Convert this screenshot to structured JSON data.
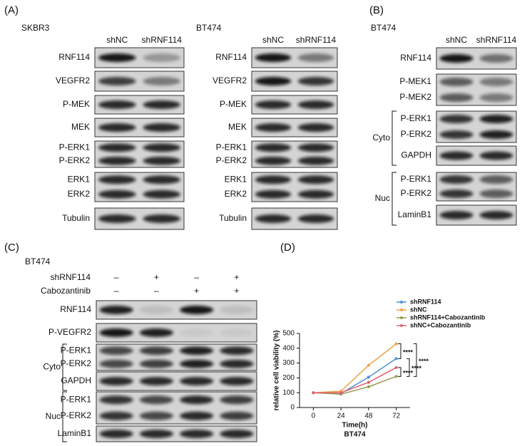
{
  "panels": {
    "A": {
      "label": "(A)",
      "blots": [
        {
          "cell_line": "SKBR3",
          "columns": [
            "shNC",
            "shRNF114"
          ],
          "rows": [
            [
              "RNF114"
            ],
            [
              "VEGFR2"
            ],
            [
              "P-MEK"
            ],
            [
              "MEK"
            ],
            [
              "P-ERK1",
              "P-ERK2"
            ],
            [
              "ERK1",
              "ERK2"
            ],
            [
              "Tubulin"
            ]
          ]
        },
        {
          "cell_line": "BT474",
          "columns": [
            "shNC",
            "shRNF114"
          ],
          "rows": [
            [
              "RNF114"
            ],
            [
              "VEGFR2"
            ],
            [
              "P-MEK"
            ],
            [
              "MEK"
            ],
            [
              "P-ERK1",
              "P-ERK2"
            ],
            [
              "ERK1",
              "ERK2"
            ],
            [
              "Tubulin"
            ]
          ]
        }
      ]
    },
    "B": {
      "label": "(B)",
      "cell_line": "BT474",
      "columns": [
        "shNC",
        "shRNF114"
      ],
      "rows": [
        [
          "RNF114"
        ],
        [
          "P-MEK1",
          "P-MEK2"
        ],
        [
          "P-ERK1",
          "P-ERK2"
        ],
        [
          "GAPDH"
        ],
        [
          "P-ERK1",
          "P-ERK2"
        ],
        [
          "LaminB1"
        ]
      ],
      "groups": [
        {
          "label": "Cyto",
          "rows": [
            2,
            3
          ]
        },
        {
          "label": "Nuc",
          "rows": [
            4,
            5
          ]
        }
      ]
    },
    "C": {
      "label": "(C)",
      "cell_line": "BT474",
      "conditions": [
        {
          "label": "shRNF114",
          "signs": [
            "–",
            "+",
            "–",
            "+"
          ]
        },
        {
          "label": "Cabozantinib",
          "signs": [
            "–",
            "–",
            "+",
            "+"
          ]
        }
      ],
      "rows": [
        [
          "RNF114"
        ],
        [
          "P-VEGFR2"
        ],
        [
          "P-ERK1",
          "P-ERK2"
        ],
        [
          "GAPDH"
        ],
        [
          "P-ERK1",
          "P-ERK2"
        ],
        [
          "LaminB1"
        ]
      ],
      "groups": [
        {
          "label": "Cyto",
          "rows": [
            2,
            3
          ]
        },
        {
          "label": "Nuc",
          "rows": [
            4,
            5
          ]
        }
      ]
    },
    "D": {
      "label": "(D)"
    }
  },
  "chart_data": {
    "type": "line",
    "xlabel": "Time(h)",
    "subtitle": "BT474",
    "ylabel": "relative cell viability (%)",
    "categories": [
      "0",
      "24",
      "48",
      "72"
    ],
    "series": [
      {
        "name": "shRNF114",
        "color": "#4a90d9",
        "values": [
          100,
          95,
          205,
          330
        ]
      },
      {
        "name": "shNC",
        "color": "#f0a040",
        "values": [
          100,
          110,
          285,
          430
        ]
      },
      {
        "name": "shRNF114+Cabozantinib",
        "color": "#9a9a50",
        "values": [
          100,
          90,
          140,
          210
        ]
      },
      {
        "name": "shNC+Cabozantinib",
        "color": "#e06070",
        "values": [
          100,
          100,
          170,
          270
        ]
      }
    ],
    "ylim": [
      0,
      500
    ],
    "yticks": [
      0,
      100,
      200,
      300,
      400,
      500
    ],
    "annotations": [
      "****",
      "****",
      "****",
      "****"
    ]
  }
}
